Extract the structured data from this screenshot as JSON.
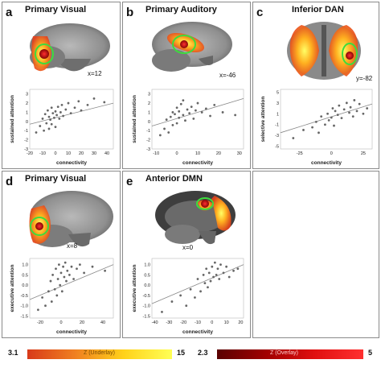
{
  "panels": [
    {
      "id": "a",
      "label": "a",
      "title": "Primary Visual",
      "coord": "x=12",
      "xlabel": "connectivity",
      "ylabel": "sustained attention",
      "xticks": [
        "-20",
        "-10",
        "0",
        "10",
        "20",
        "30",
        "40"
      ],
      "yticks": [
        "3",
        "2",
        "1",
        "0",
        "-1",
        "-2",
        "-3"
      ]
    },
    {
      "id": "b",
      "label": "b",
      "title": "Primary Auditory",
      "coord": "x=-46",
      "xlabel": "connectivity",
      "ylabel": "sustained attention",
      "xticks": [
        "-10",
        "0",
        "10",
        "20",
        "30"
      ],
      "yticks": [
        "3",
        "2",
        "1",
        "0",
        "-1",
        "-2",
        "-3"
      ]
    },
    {
      "id": "c",
      "label": "c",
      "title": "Inferior DAN",
      "coord": "y=-82",
      "xlabel": "connectivity",
      "ylabel": "selective attention",
      "xticks": [
        "-25",
        "0",
        "25"
      ],
      "yticks": [
        "5",
        "3",
        "1",
        "-1",
        "-3",
        "-5"
      ]
    },
    {
      "id": "d",
      "label": "d",
      "title": "Primary Visual",
      "coord": "x=8",
      "xlabel": "connectivity",
      "ylabel": "executive attention",
      "xticks": [
        "-20",
        "0",
        "20",
        "40"
      ],
      "yticks": [
        "1.0",
        "0.5",
        "0.0",
        "-0.5",
        "-1.0",
        "-1.5"
      ]
    },
    {
      "id": "e",
      "label": "e",
      "title": "Anterior DMN",
      "coord": "x=0",
      "xlabel": "connectivity",
      "ylabel": "executive attention",
      "xticks": [
        "-40",
        "-30",
        "-20",
        "-10",
        "0",
        "10",
        "20"
      ],
      "yticks": [
        "1.0",
        "0.5",
        "0.0",
        "-0.5",
        "-1.0",
        "-1.5"
      ]
    }
  ],
  "colorbars": {
    "underlay": {
      "min": "3.1",
      "max": "15",
      "title": "Z (Underlay)",
      "colors": [
        "#d83a1a",
        "#f08020",
        "#ffd21a",
        "#ffff55"
      ]
    },
    "overlay": {
      "min": "2.3",
      "max": "5",
      "title": "Z (Overlay)",
      "colors": [
        "#5a0000",
        "#a00000",
        "#e01010",
        "#ff3030"
      ]
    }
  },
  "chart_data": [
    {
      "type": "scatter",
      "xlim": [
        -20,
        45
      ],
      "ylim": [
        -3,
        3.5
      ],
      "x": [
        -15,
        -12,
        -10,
        -9,
        -8,
        -7,
        -6,
        -5,
        -5,
        -4,
        -3,
        -3,
        -2,
        -1,
        0,
        0,
        1,
        2,
        3,
        4,
        5,
        6,
        8,
        10,
        12,
        15,
        18,
        20,
        25,
        30,
        38
      ],
      "y": [
        -1.2,
        -0.5,
        0.3,
        -1.0,
        0.8,
        -0.2,
        1.2,
        0.5,
        -0.8,
        0.2,
        1.5,
        -0.3,
        0.9,
        0.4,
        1.1,
        -0.6,
        0.7,
        1.6,
        0.3,
        1.0,
        1.8,
        0.6,
        1.3,
        2.0,
        0.9,
        1.5,
        2.2,
        1.2,
        1.8,
        2.5,
        2.1
      ],
      "trend": [
        [
          -20,
          -0.3
        ],
        [
          45,
          2.0
        ]
      ]
    },
    {
      "type": "scatter",
      "xlim": [
        -12,
        32
      ],
      "ylim": [
        -3,
        3.5
      ],
      "x": [
        -8,
        -6,
        -5,
        -4,
        -3,
        -2,
        -2,
        -1,
        0,
        0,
        1,
        1,
        2,
        3,
        3,
        4,
        5,
        6,
        7,
        8,
        9,
        10,
        12,
        14,
        16,
        18,
        22,
        28
      ],
      "y": [
        -1.5,
        -0.8,
        0.2,
        -1.2,
        0.5,
        1.0,
        -0.4,
        0.8,
        1.5,
        -0.2,
        1.1,
        0.4,
        1.9,
        0.7,
        2.3,
        0.1,
        1.3,
        0.9,
        1.6,
        0.3,
        1.2,
        2.0,
        1.0,
        1.4,
        0.6,
        1.8,
        1.0,
        0.7
      ],
      "trend": [
        [
          -12,
          -0.5
        ],
        [
          32,
          2.5
        ]
      ]
    },
    {
      "type": "scatter",
      "xlim": [
        -40,
        32
      ],
      "ylim": [
        -5.5,
        5.5
      ],
      "x": [
        -30,
        -22,
        -15,
        -12,
        -10,
        -8,
        -5,
        -3,
        -2,
        0,
        1,
        2,
        3,
        5,
        6,
        8,
        10,
        12,
        14,
        15,
        17,
        18,
        20,
        22,
        25,
        28
      ],
      "y": [
        -3.5,
        -2.0,
        -1.5,
        -0.5,
        -2.5,
        0.5,
        -1.0,
        1.0,
        -0.2,
        0.3,
        2.0,
        -1.2,
        1.5,
        0.8,
        2.5,
        0.2,
        1.8,
        3.0,
        1.2,
        2.2,
        0.5,
        3.5,
        1.5,
        2.8,
        1.0,
        2.0
      ],
      "trend": [
        [
          -40,
          -2.5
        ],
        [
          32,
          2.8
        ]
      ]
    },
    {
      "type": "scatter",
      "xlim": [
        -30,
        50
      ],
      "ylim": [
        -1.6,
        1.3
      ],
      "x": [
        -22,
        -18,
        -15,
        -12,
        -10,
        -9,
        -8,
        -6,
        -5,
        -4,
        -3,
        -2,
        -1,
        0,
        1,
        2,
        3,
        4,
        5,
        6,
        8,
        10,
        12,
        15,
        18,
        22,
        30,
        42
      ],
      "y": [
        -1.2,
        -0.6,
        -1.0,
        -0.3,
        0.2,
        -0.8,
        0.5,
        -0.2,
        0.8,
        -0.5,
        0.3,
        1.0,
        0.0,
        0.6,
        -0.3,
        0.9,
        0.4,
        1.1,
        0.2,
        0.7,
        0.5,
        0.9,
        0.3,
        0.8,
        1.0,
        0.6,
        0.9,
        0.7
      ],
      "trend": [
        [
          -30,
          -0.7
        ],
        [
          50,
          1.0
        ]
      ]
    },
    {
      "type": "scatter",
      "xlim": [
        -42,
        22
      ],
      "ylim": [
        -1.6,
        1.3
      ],
      "x": [
        -35,
        -28,
        -22,
        -18,
        -15,
        -12,
        -10,
        -8,
        -6,
        -5,
        -4,
        -3,
        -2,
        -1,
        0,
        1,
        2,
        3,
        4,
        5,
        6,
        8,
        10,
        12,
        15,
        18
      ],
      "y": [
        -1.3,
        -0.8,
        -0.5,
        -1.0,
        -0.2,
        -0.6,
        0.3,
        -0.3,
        0.5,
        0.1,
        0.8,
        -0.1,
        0.6,
        0.2,
        0.9,
        0.4,
        1.1,
        0.5,
        0.8,
        0.3,
        1.0,
        0.6,
        0.9,
        0.4,
        0.7,
        0.8
      ],
      "trend": [
        [
          -42,
          -0.9
        ],
        [
          22,
          1.0
        ]
      ]
    }
  ]
}
